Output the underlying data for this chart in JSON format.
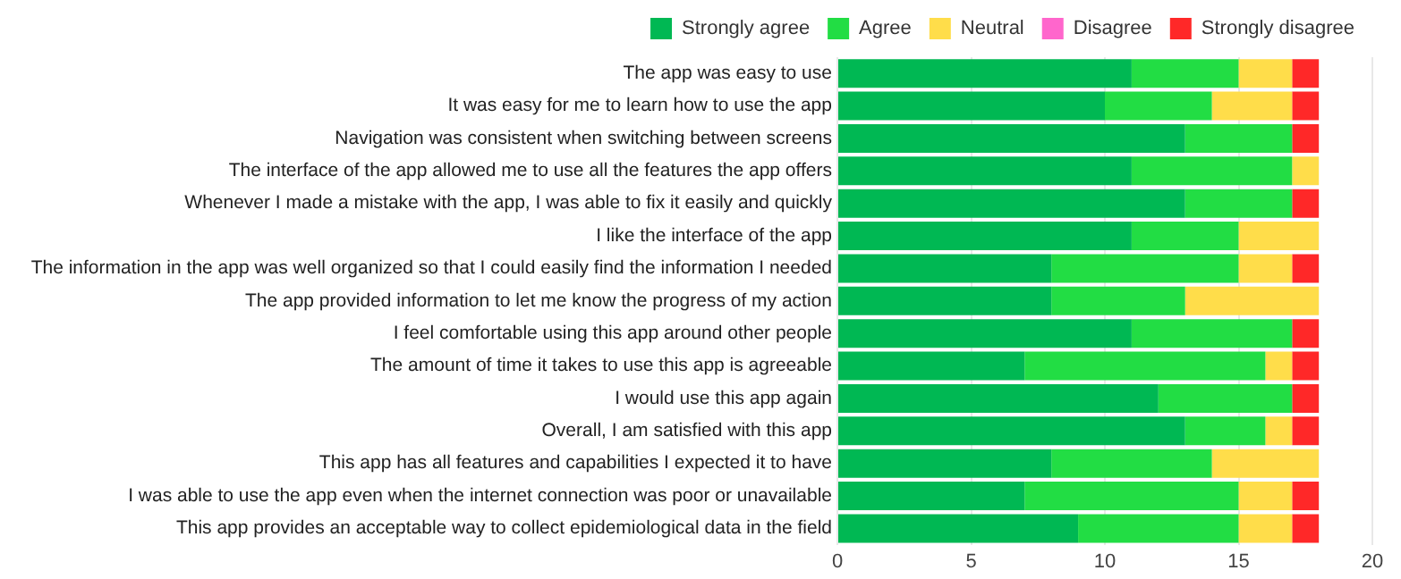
{
  "chart_data": {
    "type": "bar",
    "orientation": "horizontal",
    "stacked": true,
    "legend": "top",
    "grid": "x",
    "categories": [
      "The app was easy to use",
      "It was easy for me to learn how to use the app",
      "Navigation was consistent when switching between screens",
      "The interface of the app allowed me to use all the features the app offers",
      "Whenever I made a mistake with the app, I was able to fix it easily and quickly",
      "I like the interface of the app",
      "The information in the app was well organized so that I could easily find the information I needed",
      "The app provided information to let me know the progress of my action",
      "I feel comfortable using this app around other people",
      "The amount of time it takes to use this app is agreeable",
      "I would use this app again",
      "Overall, I am satisfied with this app",
      "This app has all features and capabilities I expected it to have",
      "I was able to use the app even when the internet connection was poor or unavailable",
      "This app provides an acceptable way to collect epidemiological data in the field"
    ],
    "series": [
      {
        "name": "Strongly agree",
        "color": "#00b853",
        "values": [
          11,
          10,
          13,
          11,
          13,
          11,
          8,
          8,
          11,
          7,
          12,
          13,
          8,
          7,
          9
        ]
      },
      {
        "name": "Agree",
        "color": "#22dd44",
        "values": [
          4,
          4,
          4,
          6,
          4,
          4,
          7,
          5,
          6,
          9,
          5,
          3,
          6,
          8,
          6
        ]
      },
      {
        "name": "Neutral",
        "color": "#ffdd4a",
        "values": [
          2,
          3,
          0,
          1,
          0,
          3,
          2,
          5,
          0,
          1,
          0,
          1,
          4,
          2,
          2
        ]
      },
      {
        "name": "Disagree",
        "color": "#ff66cc",
        "values": [
          0,
          0,
          0,
          0,
          0,
          0,
          0,
          0,
          0,
          0,
          0,
          0,
          0,
          0,
          0
        ]
      },
      {
        "name": "Strongly disagree",
        "color": "#ff2828",
        "values": [
          1,
          1,
          1,
          0,
          1,
          0,
          1,
          0,
          1,
          1,
          1,
          1,
          0,
          1,
          1
        ]
      }
    ],
    "xlim": [
      0,
      20
    ],
    "xticks": [
      0,
      5,
      10,
      15,
      20
    ]
  }
}
